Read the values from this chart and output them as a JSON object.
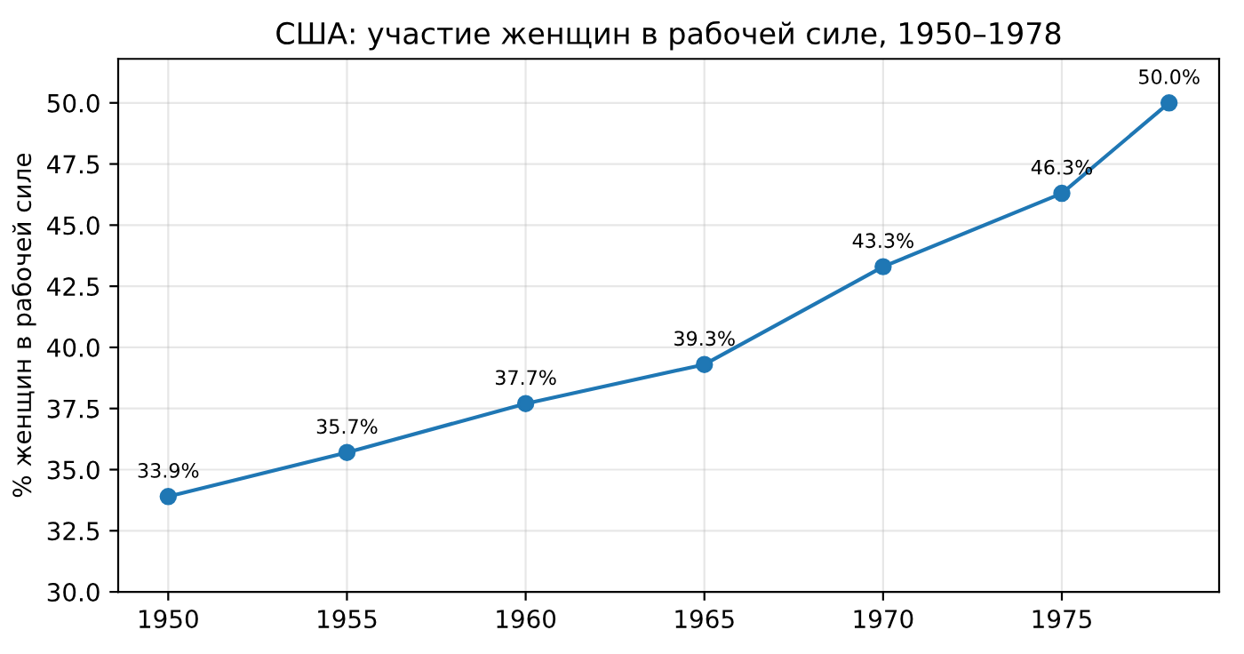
{
  "chart_data": {
    "type": "line",
    "title": "США: участие женщин в рабочей силе, 1950–1978",
    "ylabel": "% женщин в рабочей силе",
    "x": [
      1950,
      1955,
      1960,
      1965,
      1970,
      1975,
      1978
    ],
    "series": [
      {
        "color": "#1f77b4",
        "values": [
          33.9,
          35.7,
          37.7,
          39.3,
          43.3,
          46.3,
          50.0
        ],
        "value_labels": [
          "33.9%",
          "35.7%",
          "37.7%",
          "39.3%",
          "43.3%",
          "46.3%",
          "50.0%"
        ]
      }
    ],
    "xlim": [
      1948.6,
      1979.4
    ],
    "xticks": [
      1950,
      1955,
      1960,
      1965,
      1970,
      1975
    ],
    "ylim": [
      30,
      51.8
    ],
    "yticks": [
      {
        "value": 30,
        "label": "30.0"
      },
      32.5,
      {
        "value": 35,
        "label": "35.0"
      },
      37.5,
      {
        "value": 40,
        "label": "40.0"
      },
      42.5,
      {
        "value": 45,
        "label": "45.0"
      },
      47.5,
      {
        "value": 50,
        "label": "50.0"
      }
    ],
    "grid": true,
    "marker": "circle",
    "line_style": "solid"
  }
}
